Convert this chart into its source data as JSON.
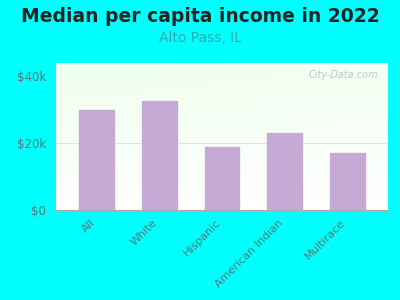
{
  "title": "Median per capita income in 2022",
  "subtitle": "Alto Pass, IL",
  "title_color": "#222222",
  "subtitle_color": "#33aaaa",
  "categories": [
    "All",
    "White",
    "Hispanic",
    "American Indian",
    "Multirace"
  ],
  "values": [
    30000,
    32500,
    19000,
    23000,
    17000
  ],
  "bar_color": "#c4aad4",
  "background_color": "#00ffff",
  "plot_bg_color_tl": "#e8f8e8",
  "plot_bg_color_tr": "#f8fff8",
  "plot_bg_color_bl": "#ffffff",
  "plot_bg_color_br": "#ffffff",
  "yticks": [
    0,
    20000,
    40000
  ],
  "ytick_labels": [
    "$0",
    "$20k",
    "$40k"
  ],
  "ylim": [
    0,
    44000
  ],
  "title_fontsize": 13.5,
  "subtitle_fontsize": 10,
  "tick_color": "#557777",
  "xlabel_color": "#557777",
  "watermark": "City-Data.com",
  "watermark_color": "#aacaca",
  "spine_color": "#aaaaaa"
}
